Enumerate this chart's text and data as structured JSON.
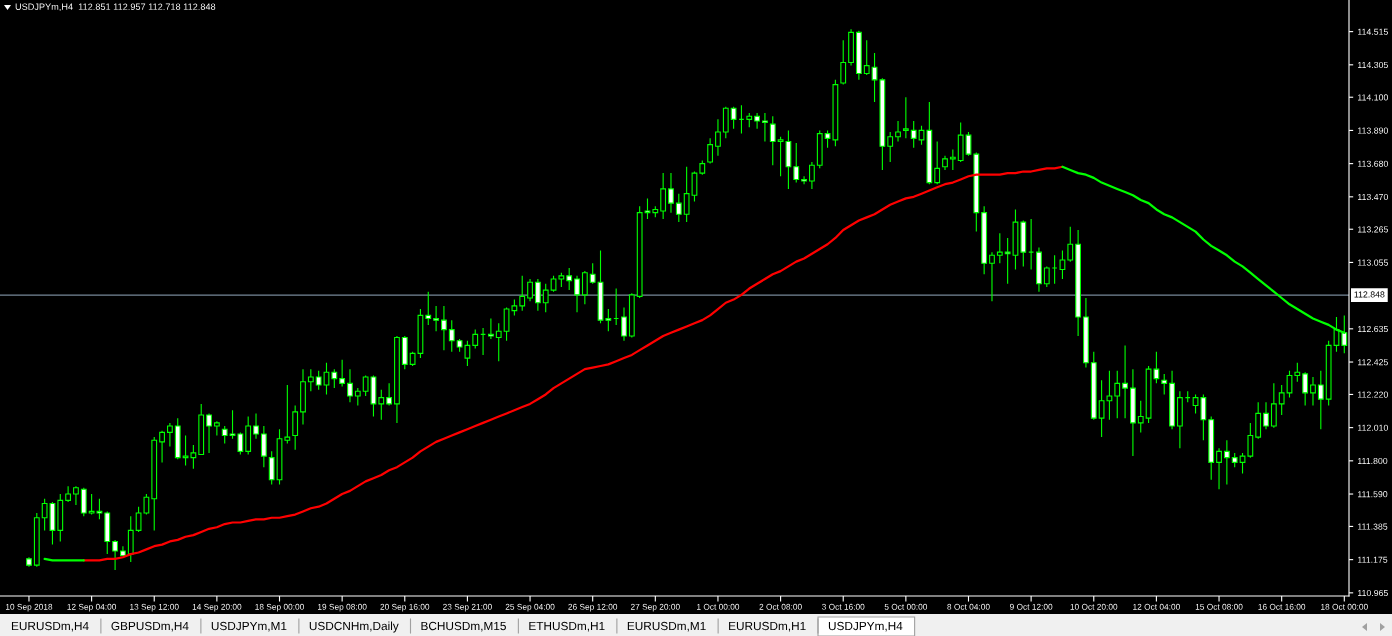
{
  "chart_data": {
    "type": "candlestick",
    "title": "USDJPYm,H4  112.851 112.957 112.718 112.848",
    "categories": [
      "10 Sep 2018",
      null,
      null,
      null,
      null,
      null,
      null,
      null,
      "12 Sep 04:00",
      null,
      null,
      null,
      null,
      null,
      null,
      null,
      "13 Sep 12:00",
      null,
      null,
      null,
      null,
      null,
      null,
      null,
      "14 Sep 20:00",
      null,
      null,
      null,
      null,
      null,
      null,
      null,
      "18 Sep 00:00",
      null,
      null,
      null,
      null,
      null,
      null,
      null,
      "19 Sep 08:00",
      null,
      null,
      null,
      null,
      null,
      null,
      null,
      "20 Sep 16:00",
      null,
      null,
      null,
      null,
      null,
      null,
      null,
      "23 Sep 21:00",
      null,
      null,
      null,
      null,
      null,
      null,
      null,
      "25 Sep 04:00",
      null,
      null,
      null,
      null,
      null,
      null,
      null,
      "26 Sep 12:00",
      null,
      null,
      null,
      null,
      null,
      null,
      null,
      "27 Sep 20:00",
      null,
      null,
      null,
      null,
      null,
      null,
      null,
      "1 Oct 00:00",
      null,
      null,
      null,
      null,
      null,
      null,
      null,
      "2 Oct 08:00",
      null,
      null,
      null,
      null,
      null,
      null,
      null,
      "3 Oct 16:00",
      null,
      null,
      null,
      null,
      null,
      null,
      null,
      "5 Oct 00:00",
      null,
      null,
      null,
      null,
      null,
      null,
      null,
      "8 Oct 04:00",
      null,
      null,
      null,
      null,
      null,
      null,
      null,
      "9 Oct 12:00",
      null,
      null,
      null,
      null,
      null,
      null,
      null,
      "10 Oct 20:00",
      null,
      null,
      null,
      null,
      null,
      null,
      null,
      "12 Oct 04:00",
      null,
      null,
      null,
      null,
      null,
      null,
      null,
      "15 Oct 08:00",
      null,
      null,
      null,
      null,
      null,
      null,
      null,
      "16 Oct 16:00",
      null,
      null,
      null,
      null,
      null,
      null,
      null,
      "18 Oct 00:00"
    ],
    "color": "#00ff00",
    "ohlc": [
      [
        111.18,
        111.19,
        111.13,
        111.14
      ],
      [
        111.14,
        111.47,
        111.13,
        111.44
      ],
      [
        111.44,
        111.56,
        111.36,
        111.53
      ],
      [
        111.53,
        111.54,
        111.27,
        111.36
      ],
      [
        111.36,
        111.59,
        111.29,
        111.55
      ],
      [
        111.55,
        111.64,
        111.54,
        111.59
      ],
      [
        111.59,
        111.64,
        111.52,
        111.63
      ],
      [
        111.62,
        111.63,
        111.45,
        111.47
      ],
      [
        111.47,
        111.59,
        111.46,
        111.48
      ],
      [
        111.48,
        111.56,
        111.43,
        111.47
      ],
      [
        111.47,
        111.48,
        111.21,
        111.29
      ],
      [
        111.29,
        111.3,
        111.11,
        111.23
      ],
      [
        111.23,
        111.26,
        111.2,
        111.2
      ],
      [
        111.21,
        111.45,
        111.16,
        111.36
      ],
      [
        111.36,
        111.51,
        111.35,
        111.47
      ],
      [
        111.47,
        111.59,
        111.46,
        111.57
      ],
      [
        111.56,
        111.95,
        111.36,
        111.93
      ],
      [
        111.92,
        111.99,
        111.79,
        111.98
      ],
      [
        111.98,
        112.04,
        111.89,
        112.02
      ],
      [
        112.02,
        112.07,
        111.81,
        111.82
      ],
      [
        111.82,
        111.96,
        111.77,
        111.83
      ],
      [
        111.82,
        111.9,
        111.75,
        111.85
      ],
      [
        111.84,
        112.16,
        111.84,
        112.09
      ],
      [
        112.09,
        112.1,
        111.85,
        112.02
      ],
      [
        112.02,
        112.05,
        111.96,
        112.04
      ],
      [
        112.0,
        112.02,
        111.91,
        111.96
      ],
      [
        111.97,
        112.12,
        111.94,
        111.96
      ],
      [
        111.97,
        111.98,
        111.84,
        111.86
      ],
      [
        111.86,
        112.08,
        111.84,
        112.02
      ],
      [
        112.02,
        112.1,
        111.94,
        111.97
      ],
      [
        111.97,
        112.02,
        111.76,
        111.83
      ],
      [
        111.82,
        111.86,
        111.65,
        111.68
      ],
      [
        111.68,
        112.0,
        111.65,
        111.94
      ],
      [
        111.93,
        112.28,
        111.91,
        111.95
      ],
      [
        111.96,
        112.15,
        111.87,
        112.11
      ],
      [
        112.11,
        112.38,
        112.03,
        112.3
      ],
      [
        112.3,
        112.38,
        112.24,
        112.33
      ],
      [
        112.33,
        112.37,
        112.25,
        112.28
      ],
      [
        112.28,
        112.42,
        112.22,
        112.36
      ],
      [
        112.36,
        112.38,
        112.26,
        112.32
      ],
      [
        112.32,
        112.44,
        112.27,
        112.29
      ],
      [
        112.29,
        112.38,
        112.17,
        112.21
      ],
      [
        112.21,
        112.26,
        112.15,
        112.24
      ],
      [
        112.24,
        112.34,
        112.21,
        112.33
      ],
      [
        112.33,
        112.34,
        112.08,
        112.16
      ],
      [
        112.16,
        112.25,
        112.06,
        112.2
      ],
      [
        112.2,
        112.29,
        112.15,
        112.16
      ],
      [
        112.16,
        112.59,
        112.04,
        112.58
      ],
      [
        112.58,
        112.59,
        112.38,
        112.41
      ],
      [
        112.41,
        112.49,
        112.4,
        112.48
      ],
      [
        112.48,
        112.76,
        112.45,
        112.72
      ],
      [
        112.72,
        112.87,
        112.66,
        112.7
      ],
      [
        112.7,
        112.78,
        112.62,
        112.69
      ],
      [
        112.69,
        112.78,
        112.5,
        112.63
      ],
      [
        112.63,
        112.69,
        112.49,
        112.56
      ],
      [
        112.56,
        112.57,
        112.49,
        112.52
      ],
      [
        112.45,
        112.56,
        112.4,
        112.53
      ],
      [
        112.53,
        112.63,
        112.51,
        112.6
      ],
      [
        112.6,
        112.64,
        112.47,
        112.6
      ],
      [
        112.6,
        112.7,
        112.57,
        112.59
      ],
      [
        112.58,
        112.67,
        112.43,
        112.62
      ],
      [
        112.62,
        112.77,
        112.56,
        112.76
      ],
      [
        112.75,
        112.82,
        112.72,
        112.78
      ],
      [
        112.78,
        112.97,
        112.75,
        112.84
      ],
      [
        112.83,
        112.95,
        112.81,
        112.93
      ],
      [
        112.93,
        112.95,
        112.75,
        112.8
      ],
      [
        112.8,
        112.92,
        112.74,
        112.88
      ],
      [
        112.88,
        112.97,
        112.87,
        112.95
      ],
      [
        112.95,
        112.99,
        112.9,
        112.97
      ],
      [
        112.97,
        113.02,
        112.88,
        112.94
      ],
      [
        112.95,
        112.97,
        112.74,
        112.85
      ],
      [
        112.85,
        113.0,
        112.79,
        112.99
      ],
      [
        112.98,
        113.05,
        112.92,
        112.93
      ],
      [
        112.93,
        113.13,
        112.67,
        112.69
      ],
      [
        112.7,
        112.76,
        112.62,
        112.69
      ],
      [
        112.7,
        112.89,
        112.66,
        112.7
      ],
      [
        112.71,
        112.77,
        112.56,
        112.59
      ],
      [
        112.59,
        112.86,
        112.58,
        112.85
      ],
      [
        112.84,
        113.41,
        112.83,
        113.37
      ],
      [
        113.38,
        113.46,
        113.33,
        113.37
      ],
      [
        113.37,
        113.41,
        113.34,
        113.39
      ],
      [
        113.38,
        113.62,
        113.33,
        113.52
      ],
      [
        113.52,
        113.62,
        113.37,
        113.43
      ],
      [
        113.43,
        113.49,
        113.31,
        113.36
      ],
      [
        113.36,
        113.66,
        113.31,
        113.49
      ],
      [
        113.48,
        113.63,
        113.44,
        113.62
      ],
      [
        113.62,
        113.7,
        113.61,
        113.68
      ],
      [
        113.69,
        113.84,
        113.68,
        113.8
      ],
      [
        113.79,
        113.96,
        113.73,
        113.88
      ],
      [
        113.88,
        114.04,
        113.84,
        114.03
      ],
      [
        114.03,
        114.04,
        113.9,
        113.96
      ],
      [
        113.96,
        114.05,
        113.87,
        113.96
      ],
      [
        113.96,
        114.0,
        113.91,
        113.98
      ],
      [
        113.98,
        114.0,
        113.9,
        113.95
      ],
      [
        113.95,
        114.0,
        113.82,
        113.94
      ],
      [
        113.93,
        113.98,
        113.67,
        113.82
      ],
      [
        113.82,
        113.85,
        113.6,
        113.83
      ],
      [
        113.82,
        113.89,
        113.52,
        113.66
      ],
      [
        113.66,
        113.81,
        113.56,
        113.58
      ],
      [
        113.58,
        113.6,
        113.55,
        113.57
      ],
      [
        113.57,
        113.69,
        113.52,
        113.67
      ],
      [
        113.67,
        113.89,
        113.65,
        113.87
      ],
      [
        113.87,
        113.89,
        113.78,
        113.84
      ],
      [
        113.83,
        114.21,
        113.79,
        114.18
      ],
      [
        114.19,
        114.46,
        114.18,
        114.32
      ],
      [
        114.32,
        114.53,
        114.3,
        114.51
      ],
      [
        114.51,
        114.52,
        114.21,
        114.25
      ],
      [
        114.25,
        114.46,
        114.24,
        114.3
      ],
      [
        114.29,
        114.38,
        114.07,
        114.21
      ],
      [
        114.21,
        114.22,
        113.64,
        113.79
      ],
      [
        113.79,
        113.88,
        113.69,
        113.85
      ],
      [
        113.85,
        113.95,
        113.82,
        113.88
      ],
      [
        113.89,
        114.1,
        113.84,
        113.9
      ],
      [
        113.89,
        113.95,
        113.78,
        113.84
      ],
      [
        113.83,
        113.92,
        113.8,
        113.89
      ],
      [
        113.89,
        114.07,
        113.55,
        113.56
      ],
      [
        113.56,
        113.82,
        113.55,
        113.65
      ],
      [
        113.66,
        113.73,
        113.64,
        113.71
      ],
      [
        113.71,
        113.77,
        113.64,
        113.72
      ],
      [
        113.7,
        113.94,
        113.69,
        113.86
      ],
      [
        113.86,
        113.88,
        113.73,
        113.74
      ],
      [
        113.74,
        113.75,
        113.25,
        113.37
      ],
      [
        113.37,
        113.41,
        112.98,
        113.05
      ],
      [
        113.05,
        113.12,
        112.81,
        113.1
      ],
      [
        113.1,
        113.24,
        113.05,
        113.12
      ],
      [
        113.12,
        113.21,
        112.92,
        113.11
      ],
      [
        113.1,
        113.39,
        113.01,
        113.31
      ],
      [
        113.31,
        113.32,
        113.03,
        113.12
      ],
      [
        113.12,
        113.33,
        113.01,
        113.12
      ],
      [
        113.12,
        113.15,
        112.87,
        112.92
      ],
      [
        112.92,
        113.03,
        112.9,
        113.02
      ],
      [
        113.02,
        113.1,
        112.92,
        113.02
      ],
      [
        113.01,
        113.13,
        112.95,
        113.07
      ],
      [
        113.07,
        113.28,
        113.06,
        113.17
      ],
      [
        113.17,
        113.26,
        112.59,
        112.71
      ],
      [
        112.71,
        112.83,
        112.39,
        112.42
      ],
      [
        112.42,
        112.49,
        112.06,
        112.07
      ],
      [
        112.07,
        112.31,
        111.95,
        112.18
      ],
      [
        112.18,
        112.37,
        112.06,
        112.21
      ],
      [
        112.21,
        112.37,
        112.07,
        112.29
      ],
      [
        112.29,
        112.53,
        112.07,
        112.26
      ],
      [
        112.26,
        112.38,
        111.83,
        112.04
      ],
      [
        112.04,
        112.18,
        111.98,
        112.08
      ],
      [
        112.07,
        112.4,
        112.04,
        112.38
      ],
      [
        112.38,
        112.49,
        112.29,
        112.32
      ],
      [
        112.31,
        112.35,
        112.22,
        112.29
      ],
      [
        112.29,
        112.37,
        112.0,
        112.02
      ],
      [
        112.02,
        112.24,
        111.88,
        112.2
      ],
      [
        112.2,
        112.24,
        112.17,
        112.2
      ],
      [
        112.15,
        112.22,
        112.1,
        112.2
      ],
      [
        112.2,
        112.22,
        111.93,
        112.06
      ],
      [
        112.06,
        112.08,
        111.68,
        111.79
      ],
      [
        111.79,
        111.88,
        111.62,
        111.86
      ],
      [
        111.86,
        111.93,
        111.65,
        111.82
      ],
      [
        111.82,
        111.85,
        111.76,
        111.79
      ],
      [
        111.79,
        111.85,
        111.72,
        111.83
      ],
      [
        111.83,
        112.04,
        111.82,
        111.96
      ],
      [
        111.95,
        112.17,
        111.94,
        112.1
      ],
      [
        112.1,
        112.17,
        112.0,
        112.02
      ],
      [
        112.02,
        112.29,
        112.01,
        112.16
      ],
      [
        112.16,
        112.28,
        112.09,
        112.23
      ],
      [
        112.23,
        112.37,
        112.2,
        112.34
      ],
      [
        112.34,
        112.42,
        112.3,
        112.36
      ],
      [
        112.35,
        112.36,
        112.15,
        112.23
      ],
      [
        112.23,
        112.33,
        112.15,
        112.28
      ],
      [
        112.28,
        112.37,
        112.0,
        112.19
      ],
      [
        112.19,
        112.56,
        112.15,
        112.53
      ],
      [
        112.53,
        112.71,
        112.49,
        112.63
      ],
      [
        112.61,
        112.72,
        112.48,
        112.53
      ]
    ],
    "series": [
      {
        "type": "line",
        "color": "#ff0000",
        "values": [
          null,
          null,
          null,
          null,
          null,
          null,
          null,
          111.17,
          111.17,
          111.17,
          111.18,
          111.18,
          111.19,
          111.21,
          111.22,
          111.24,
          111.26,
          111.27,
          111.29,
          111.3,
          111.32,
          111.33,
          111.35,
          111.37,
          111.38,
          111.4,
          111.41,
          111.41,
          111.42,
          111.43,
          111.43,
          111.44,
          111.44,
          111.45,
          111.46,
          111.48,
          111.5,
          111.51,
          111.53,
          111.56,
          111.59,
          111.61,
          111.64,
          111.67,
          111.69,
          111.71,
          111.74,
          111.76,
          111.79,
          111.82,
          111.86,
          111.89,
          111.92,
          111.94,
          111.96,
          111.98,
          112.0,
          112.02,
          112.04,
          112.06,
          112.08,
          112.1,
          112.12,
          112.14,
          112.16,
          112.19,
          112.22,
          112.26,
          112.29,
          112.32,
          112.35,
          112.38,
          112.39,
          112.4,
          112.41,
          112.43,
          112.45,
          112.47,
          112.5,
          112.53,
          112.56,
          112.59,
          112.61,
          112.63,
          112.65,
          112.67,
          112.69,
          112.72,
          112.76,
          112.8,
          112.82,
          112.85,
          112.89,
          112.92,
          112.95,
          112.98,
          113.0,
          113.03,
          113.06,
          113.08,
          113.11,
          113.14,
          113.17,
          113.21,
          113.26,
          113.29,
          113.32,
          113.34,
          113.36,
          113.39,
          113.42,
          113.44,
          113.46,
          113.47,
          113.49,
          113.51,
          113.53,
          113.55,
          113.56,
          113.58,
          113.6,
          113.61,
          113.61,
          113.61,
          113.61,
          113.62,
          113.62,
          113.63,
          113.63,
          113.64,
          113.65,
          113.65,
          113.66,
          null,
          null,
          null,
          null,
          null,
          null,
          null,
          null,
          null,
          null,
          null,
          null,
          null,
          null,
          null,
          null,
          null,
          null,
          null,
          null,
          null,
          null,
          null,
          null,
          null,
          null,
          null,
          null,
          null,
          null,
          null,
          null,
          null,
          null,
          null,
          null
        ]
      },
      {
        "type": "line",
        "color": "#00ff00",
        "values": [
          null,
          null,
          111.18,
          111.17,
          111.17,
          111.17,
          111.17,
          111.17,
          null,
          null,
          null,
          null,
          null,
          null,
          null,
          null,
          null,
          null,
          null,
          null,
          null,
          null,
          null,
          null,
          null,
          null,
          null,
          null,
          null,
          null,
          null,
          null,
          null,
          null,
          null,
          null,
          null,
          null,
          null,
          null,
          null,
          null,
          null,
          null,
          null,
          null,
          null,
          null,
          null,
          null,
          null,
          null,
          null,
          null,
          null,
          null,
          null,
          null,
          null,
          null,
          null,
          null,
          null,
          null,
          null,
          null,
          null,
          null,
          null,
          null,
          null,
          null,
          null,
          null,
          null,
          null,
          null,
          null,
          null,
          null,
          null,
          null,
          null,
          null,
          null,
          null,
          null,
          null,
          null,
          null,
          null,
          null,
          null,
          null,
          null,
          null,
          null,
          null,
          null,
          null,
          null,
          null,
          null,
          null,
          null,
          null,
          null,
          null,
          null,
          null,
          null,
          null,
          null,
          null,
          null,
          null,
          null,
          null,
          null,
          null,
          null,
          null,
          null,
          null,
          null,
          null,
          null,
          null,
          null,
          null,
          null,
          null,
          113.66,
          113.64,
          113.62,
          113.61,
          113.59,
          113.56,
          113.54,
          113.52,
          113.5,
          113.48,
          113.45,
          113.43,
          113.39,
          113.36,
          113.34,
          113.31,
          113.28,
          113.25,
          113.2,
          113.16,
          113.13,
          113.1,
          113.06,
          113.03,
          112.99,
          112.95,
          112.91,
          112.87,
          112.83,
          112.79,
          112.76,
          112.73,
          112.7,
          112.68,
          112.66,
          112.63,
          112.61
        ]
      }
    ],
    "ylim": [
      110.945,
      114.715
    ],
    "yticks": [
      114.515,
      114.305,
      {
        "value": 114.1,
        "label": "114.100"
      },
      {
        "value": 113.89,
        "label": "113.890"
      },
      {
        "value": 113.68,
        "label": "113.680"
      },
      {
        "value": 113.47,
        "label": "113.470"
      },
      113.265,
      113.055,
      112.635,
      112.425,
      {
        "value": 112.22,
        "label": "112.220"
      },
      {
        "value": 112.01,
        "label": "112.010"
      },
      {
        "value": 111.8,
        "label": "111.800"
      },
      {
        "value": 111.59,
        "label": "111.590"
      },
      111.385,
      111.175,
      110.965
    ],
    "ref_lines": [
      {
        "axis": "y",
        "value": 112.848,
        "label": "112.848",
        "color": "#778899"
      }
    ],
    "annotations": [
      "EURUSDm,H4",
      "GBPUSDm,H4",
      "USDJPYm,M1",
      "USDCNHm,Daily",
      "BCHUSDm,M15",
      "ETHUSDm,H1",
      "EURUSDm,M1",
      "EURUSDm,H1",
      "USDJPYm,H4"
    ]
  }
}
